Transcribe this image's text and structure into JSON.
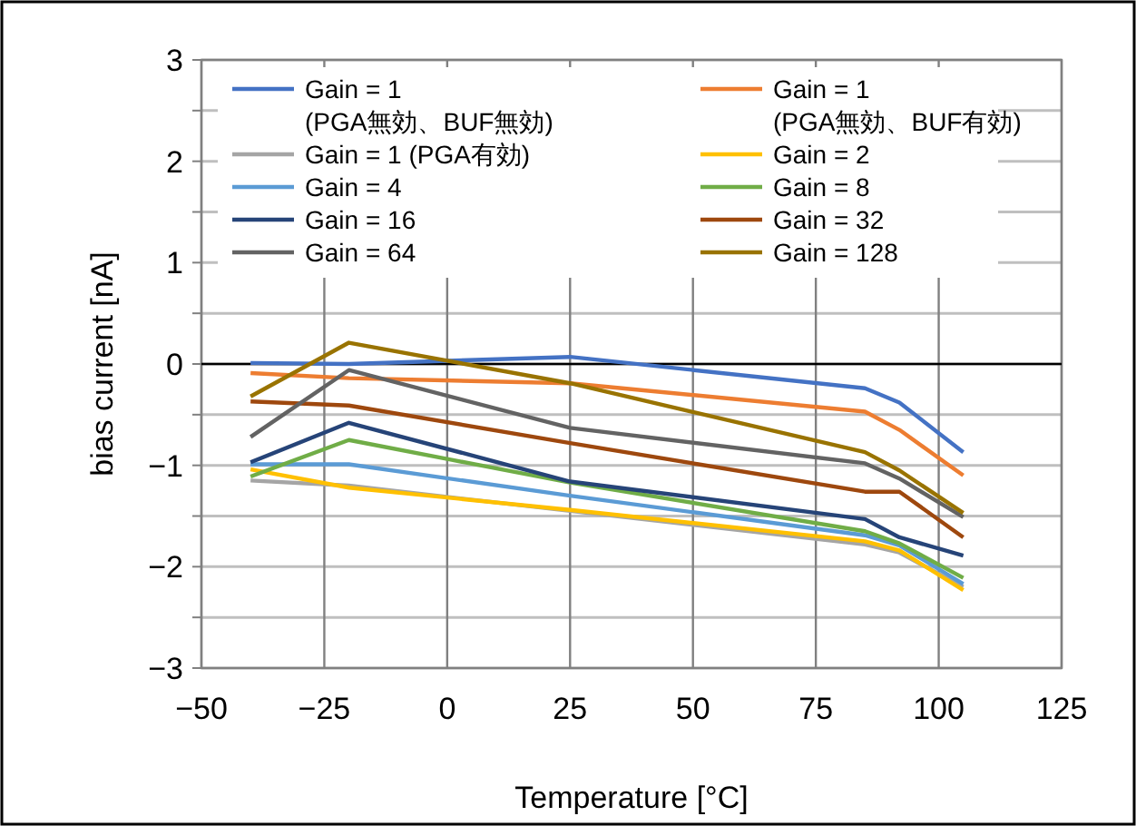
{
  "chart_data": {
    "type": "line",
    "xlabel": "Temperature [°C]",
    "ylabel": "bias current [nA]",
    "x": [
      -40,
      -20,
      25,
      85,
      92,
      105
    ],
    "xlim": [
      -50,
      125
    ],
    "xticks": [
      -50,
      -25,
      0,
      25,
      50,
      75,
      100,
      125
    ],
    "ylim": [
      -3,
      3
    ],
    "yticks": [
      -3,
      {
        "value": -2.5,
        "label": null
      },
      -2,
      {
        "value": -1.5,
        "label": null
      },
      -1,
      {
        "value": -0.5,
        "label": null
      },
      0,
      {
        "value": 0.5,
        "label": null
      },
      1,
      {
        "value": 1.5,
        "label": null
      },
      2,
      {
        "value": 2.5,
        "label": null
      },
      3
    ],
    "grid": true,
    "legend": "top",
    "marker": "none",
    "line_style": "solid",
    "ref_lines": [
      {
        "axis": "y",
        "value": 0,
        "color": "#000000"
      }
    ],
    "series": [
      {
        "name": "Gain = 1\n(PGA無効、BUF無効)",
        "color": "#4472c4",
        "values": [
          0.01,
          0.0,
          0.07,
          -0.24,
          -0.38,
          -0.87
        ]
      },
      {
        "name": "Gain = 1\n(PGA無効、BUF有効)",
        "color": "#ed7d31",
        "values": [
          -0.09,
          -0.14,
          -0.19,
          -0.47,
          -0.65,
          -1.1
        ]
      },
      {
        "name": "Gain = 1 (PGA有効)",
        "color": "#a5a5a5",
        "values": [
          -1.15,
          -1.2,
          -1.45,
          -1.78,
          -1.86,
          -2.2
        ]
      },
      {
        "name": "Gain = 2",
        "color": "#ffc000",
        "values": [
          -1.04,
          -1.22,
          -1.44,
          -1.75,
          -1.84,
          -2.23
        ]
      },
      {
        "name": "Gain = 4",
        "color": "#5b9bd5",
        "values": [
          -0.99,
          -0.99,
          -1.3,
          -1.69,
          -1.79,
          -2.17
        ]
      },
      {
        "name": "Gain = 8",
        "color": "#70ad47",
        "values": [
          -1.11,
          -0.75,
          -1.17,
          -1.65,
          -1.77,
          -2.11
        ]
      },
      {
        "name": "Gain = 16",
        "color": "#264478",
        "values": [
          -0.97,
          -0.58,
          -1.16,
          -1.53,
          -1.71,
          -1.89
        ]
      },
      {
        "name": "Gain = 32",
        "color": "#9e480e",
        "values": [
          -0.37,
          -0.41,
          -0.78,
          -1.26,
          -1.26,
          -1.71
        ]
      },
      {
        "name": "Gain = 64",
        "color": "#636363",
        "values": [
          -0.72,
          -0.06,
          -0.63,
          -0.98,
          -1.13,
          -1.51
        ]
      },
      {
        "name": "Gain = 128",
        "color": "#997300",
        "values": [
          -0.32,
          0.21,
          -0.19,
          -0.87,
          -1.05,
          -1.47
        ]
      }
    ]
  }
}
